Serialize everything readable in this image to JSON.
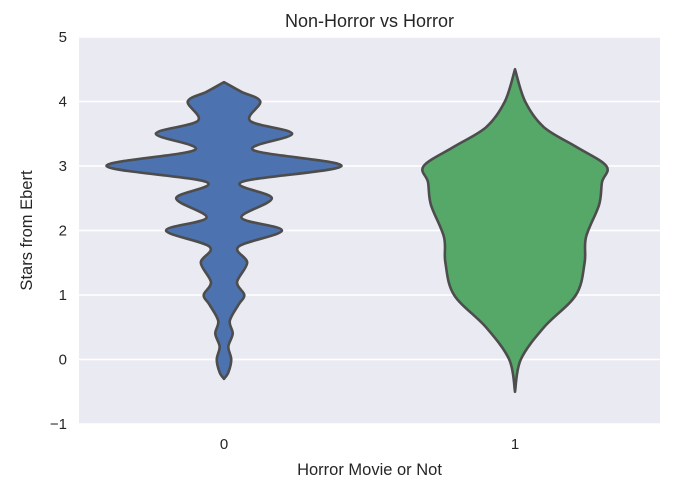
{
  "chart_data": {
    "type": "violin",
    "title": "Non-Horror vs Horror",
    "xlabel": "Horror Movie or Not",
    "ylabel": "Stars from Ebert",
    "ylim": [
      -1,
      5
    ],
    "yticks": [
      -1,
      0,
      1,
      2,
      3,
      4,
      5
    ],
    "ytick_labels": [
      "−1",
      "0",
      "1",
      "2",
      "3",
      "4",
      "5"
    ],
    "categories": [
      "0",
      "1"
    ],
    "grid": true,
    "background_color": "#eaeaf2",
    "grid_color": "#ffffff",
    "outline_color": "#4d4d4d",
    "series": [
      {
        "category": "0",
        "color": "#4c72b0",
        "range": [
          -0.3,
          4.3
        ],
        "profile": [
          {
            "y": -0.3,
            "hw": 0.0
          },
          {
            "y": -0.2,
            "hw": 0.03
          },
          {
            "y": 0.0,
            "hw": 0.05
          },
          {
            "y": 0.2,
            "hw": 0.03
          },
          {
            "y": 0.4,
            "hw": 0.06
          },
          {
            "y": 0.6,
            "hw": 0.04
          },
          {
            "y": 0.85,
            "hw": 0.1
          },
          {
            "y": 1.0,
            "hw": 0.14
          },
          {
            "y": 1.2,
            "hw": 0.09
          },
          {
            "y": 1.5,
            "hw": 0.16
          },
          {
            "y": 1.75,
            "hw": 0.1
          },
          {
            "y": 2.0,
            "hw": 0.4
          },
          {
            "y": 2.2,
            "hw": 0.12
          },
          {
            "y": 2.5,
            "hw": 0.33
          },
          {
            "y": 2.75,
            "hw": 0.12
          },
          {
            "y": 3.0,
            "hw": 0.81
          },
          {
            "y": 3.25,
            "hw": 0.2
          },
          {
            "y": 3.5,
            "hw": 0.47
          },
          {
            "y": 3.7,
            "hw": 0.18
          },
          {
            "y": 4.0,
            "hw": 0.25
          },
          {
            "y": 4.15,
            "hw": 0.12
          },
          {
            "y": 4.3,
            "hw": 0.0
          }
        ]
      },
      {
        "category": "1",
        "color": "#55a868",
        "range": [
          -0.5,
          4.5
        ],
        "profile": [
          {
            "y": -0.5,
            "hw": 0.0
          },
          {
            "y": 0.0,
            "hw": 0.04
          },
          {
            "y": 0.5,
            "hw": 0.2
          },
          {
            "y": 1.0,
            "hw": 0.42
          },
          {
            "y": 1.5,
            "hw": 0.48
          },
          {
            "y": 1.9,
            "hw": 0.49
          },
          {
            "y": 2.4,
            "hw": 0.58
          },
          {
            "y": 2.75,
            "hw": 0.6
          },
          {
            "y": 3.0,
            "hw": 0.63
          },
          {
            "y": 3.3,
            "hw": 0.42
          },
          {
            "y": 3.6,
            "hw": 0.2
          },
          {
            "y": 4.0,
            "hw": 0.07
          },
          {
            "y": 4.5,
            "hw": 0.0
          }
        ]
      }
    ]
  }
}
